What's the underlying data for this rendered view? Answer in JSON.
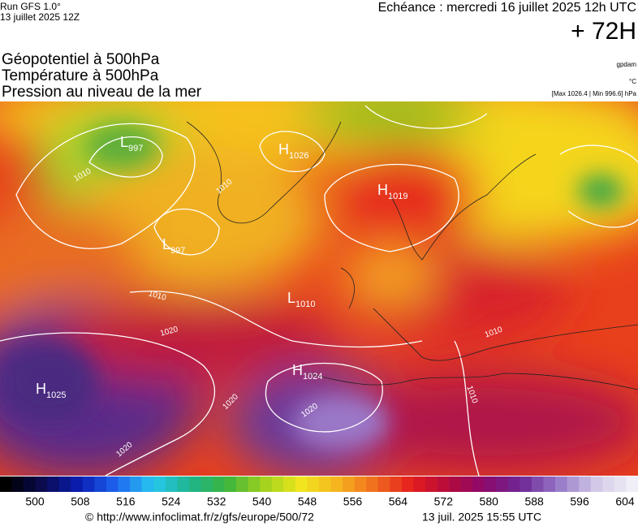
{
  "header": {
    "run": "Run GFS 1.0°",
    "run_date": "13 juillet 2025 12Z",
    "echeance": "Echéance : mercredi 16 juillet 2025 12h UTC",
    "lead": "+ 72H"
  },
  "layers": [
    "Géopotentiel à 500hPa",
    "Température à 500hPa",
    "Pression au niveau de la mer"
  ],
  "units": {
    "geopotential": "gpdam",
    "temperature": "°C",
    "pressure_range": "[Max 1026.4 | Min 996.6] hPa"
  },
  "pressure_centers": [
    {
      "type": "L",
      "value": "997"
    },
    {
      "type": "H",
      "value": "1026"
    },
    {
      "type": "H",
      "value": "1019"
    },
    {
      "type": "L",
      "value": "997"
    },
    {
      "type": "L",
      "value": "1010"
    },
    {
      "type": "H",
      "value": "1024"
    },
    {
      "type": "H",
      "value": "1025"
    }
  ],
  "contour_labels": [
    "1010",
    "1010",
    "1010",
    "1020",
    "1010",
    "1010",
    "1020",
    "1020",
    "1020"
  ],
  "legend": {
    "labels": [
      "500",
      "508",
      "516",
      "524",
      "532",
      "540",
      "548",
      "556",
      "564",
      "572",
      "580",
      "588",
      "596",
      "604"
    ]
  },
  "footer": {
    "url": "© http://www.infoclimat.fr/z/gfs/europe/500/72",
    "timestamp": "13 juil. 2025 15:55 UTC"
  }
}
